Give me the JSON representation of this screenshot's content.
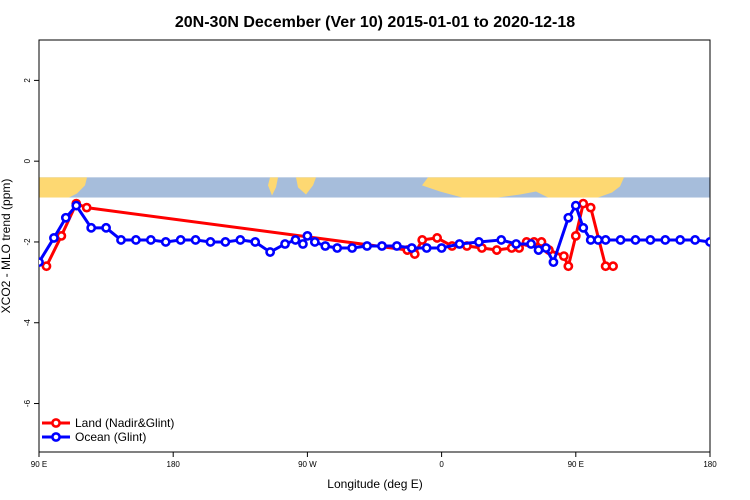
{
  "chart_data": {
    "type": "line",
    "title": "20N-30N December (Ver 10)   2015-01-01 to 2020-12-18",
    "xlabel": "Longitude (deg E)",
    "ylabel": "XCO2 - MLO trend (ppm)",
    "xlim": [
      90,
      540
    ],
    "ylim": [
      -7.2,
      3
    ],
    "x_ticks": [
      {
        "value": 90,
        "label": "90 E"
      },
      {
        "value": 180,
        "label": "180"
      },
      {
        "value": 270,
        "label": "90 W"
      },
      {
        "value": 360,
        "label": "0"
      },
      {
        "value": 450,
        "label": "90 E"
      },
      {
        "value": 540,
        "label": "180"
      }
    ],
    "y_ticks": [
      {
        "value": 2,
        "label": "2"
      },
      {
        "value": 0,
        "label": "0"
      },
      {
        "value": -2,
        "label": "-2"
      },
      {
        "value": -4,
        "label": "-4"
      },
      {
        "value": -6,
        "label": "-6"
      }
    ],
    "map_band": {
      "y_top": -0.4,
      "y_bottom": -0.9,
      "ocean_color": "#a6bddb",
      "land_color": "#fdd872"
    },
    "legend_position": "bottom-left",
    "series": [
      {
        "name": "Land (Nadir&Glint)",
        "color": "#ff0000",
        "x": [
          95,
          105,
          115,
          122,
          337,
          342,
          347,
          357,
          367,
          377,
          387,
          397,
          407,
          412,
          417,
          422,
          427,
          432,
          442,
          445,
          450,
          455,
          460,
          470,
          475
        ],
        "y": [
          -2.6,
          -1.85,
          -1.05,
          -1.15,
          -2.2,
          -2.3,
          -1.95,
          -1.9,
          -2.1,
          -2.1,
          -2.15,
          -2.2,
          -2.15,
          -2.15,
          -2.0,
          -2.0,
          -2.0,
          -2.2,
          -2.35,
          -2.6,
          -1.85,
          -1.05,
          -1.15,
          -2.6,
          -2.6
        ]
      },
      {
        "name": "Ocean (Glint)",
        "color": "#0000ff",
        "x": [
          90,
          100,
          108,
          115,
          125,
          135,
          145,
          155,
          165,
          175,
          185,
          195,
          205,
          215,
          225,
          235,
          245,
          255,
          262,
          267,
          270,
          275,
          282,
          290,
          300,
          310,
          320,
          330,
          340,
          350,
          360,
          372,
          385,
          400,
          410,
          420,
          425,
          430,
          435,
          445,
          450,
          455,
          460,
          465,
          470,
          480,
          490,
          500,
          510,
          520,
          530,
          540
        ],
        "y": [
          -2.5,
          -1.9,
          -1.4,
          -1.1,
          -1.65,
          -1.65,
          -1.95,
          -1.95,
          -1.95,
          -2.0,
          -1.95,
          -1.95,
          -2.0,
          -2.0,
          -1.95,
          -2.0,
          -2.25,
          -2.05,
          -1.95,
          -2.05,
          -1.85,
          -2.0,
          -2.1,
          -2.15,
          -2.15,
          -2.1,
          -2.1,
          -2.1,
          -2.15,
          -2.15,
          -2.15,
          -2.05,
          -2.0,
          -1.95,
          -2.05,
          -2.05,
          -2.2,
          -2.15,
          -2.5,
          -1.4,
          -1.1,
          -1.65,
          -1.95,
          -1.95,
          -1.95,
          -1.95,
          -1.95,
          -1.95,
          -1.95,
          -1.95,
          -1.95,
          -2.0
        ]
      }
    ]
  }
}
